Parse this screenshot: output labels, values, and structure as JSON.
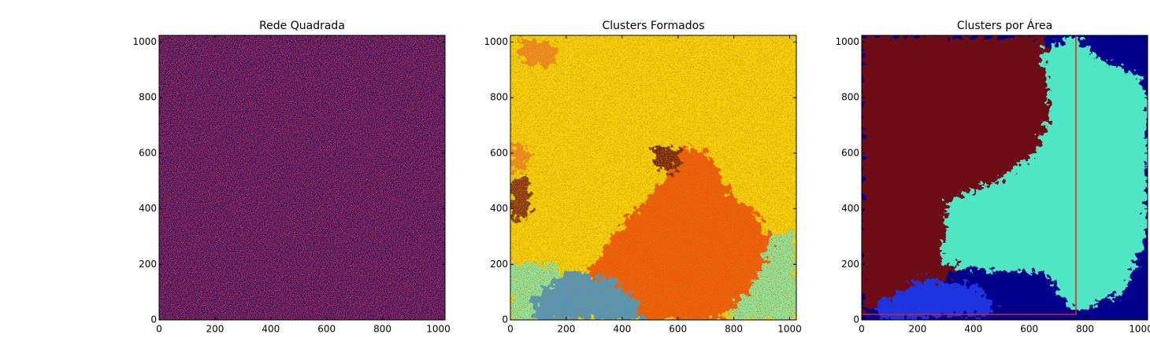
{
  "chart_data": [
    {
      "type": "image",
      "title": "Rede Quadrada",
      "xlim": [
        0,
        1024
      ],
      "ylim": [
        0,
        1024
      ],
      "xticks": [
        0,
        200,
        400,
        600,
        800,
        1000
      ],
      "yticks": [
        0,
        200,
        400,
        600,
        800,
        1000
      ]
    },
    {
      "type": "image",
      "title": "Clusters Formados",
      "xlim": [
        0,
        1024
      ],
      "ylim": [
        0,
        1024
      ],
      "xticks": [
        0,
        200,
        400,
        600,
        800,
        1000
      ],
      "yticks": [
        0,
        200,
        400,
        600,
        800,
        1000
      ]
    },
    {
      "type": "image",
      "title": "Clusters por Área",
      "xlim": [
        0,
        1024
      ],
      "ylim": [
        0,
        1024
      ],
      "xticks": [
        0,
        200,
        400,
        600,
        800,
        1000
      ],
      "yticks": [
        0,
        200,
        400,
        600,
        800,
        1000
      ]
    }
  ]
}
